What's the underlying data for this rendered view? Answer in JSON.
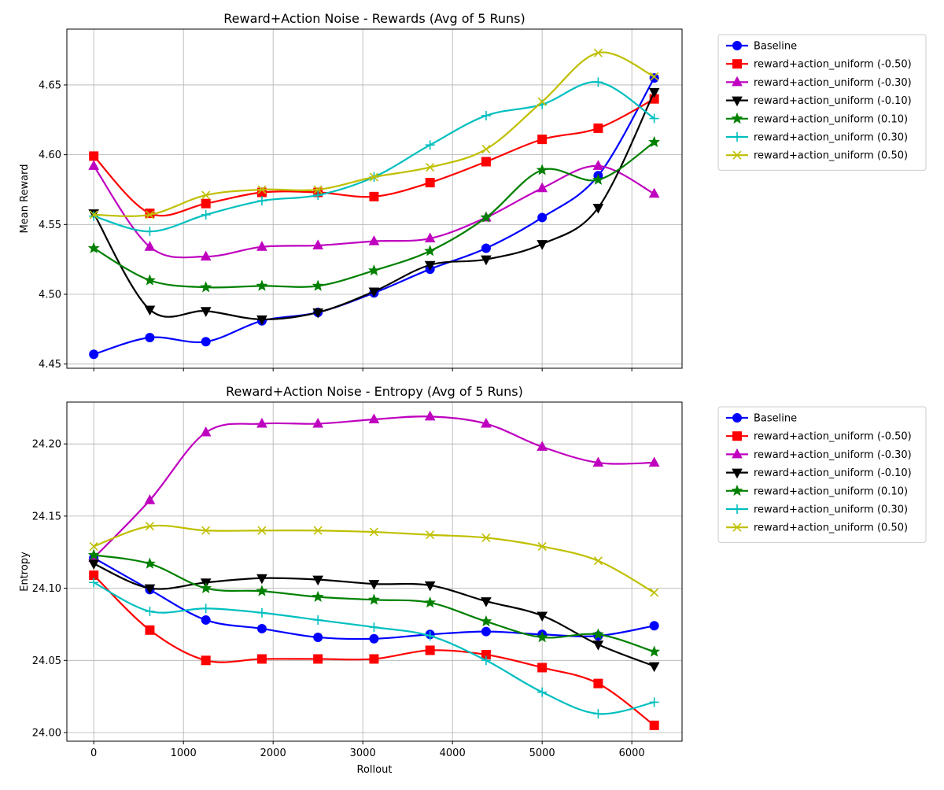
{
  "figure": {
    "series_styles": [
      {
        "color": "#0000ff",
        "marker": "circle"
      },
      {
        "color": "#ff0000",
        "marker": "square"
      },
      {
        "color": "#bf00bf",
        "marker": "triangle-up"
      },
      {
        "color": "#000000",
        "marker": "triangle-down"
      },
      {
        "color": "#008000",
        "marker": "star"
      },
      {
        "color": "#00bfbf",
        "marker": "plus"
      },
      {
        "color": "#bfbf00",
        "marker": "x"
      }
    ]
  },
  "chart_data": [
    {
      "type": "line",
      "title": "Reward+Action Noise - Rewards (Avg of 5 Runs)",
      "xlabel": "",
      "ylabel": "Mean Reward",
      "xlim": [
        -300,
        6560
      ],
      "ylim": [
        4.447,
        4.69
      ],
      "xticks": [
        0,
        1000,
        2000,
        3000,
        4000,
        5000,
        6000
      ],
      "xtick_labels_visible": false,
      "yticks": [
        4.45,
        4.5,
        4.55,
        4.6,
        4.65
      ],
      "ytick_labels": [
        "4.45",
        "4.50",
        "4.55",
        "4.60",
        "4.65"
      ],
      "grid": true,
      "legend_placement": "outside upper right",
      "x": [
        0,
        625,
        1250,
        1875,
        2500,
        3125,
        3750,
        4375,
        5000,
        5625,
        6250
      ],
      "series": [
        {
          "name": "Baseline",
          "values": [
            4.457,
            4.469,
            4.466,
            4.481,
            4.487,
            4.501,
            4.518,
            4.533,
            4.555,
            4.585,
            4.655
          ]
        },
        {
          "name": "reward+action_uniform (-0.50)",
          "values": [
            4.599,
            4.558,
            4.565,
            4.573,
            4.573,
            4.57,
            4.58,
            4.595,
            4.611,
            4.619,
            4.64
          ]
        },
        {
          "name": "reward+action_uniform (-0.30)",
          "values": [
            4.592,
            4.534,
            4.527,
            4.534,
            4.535,
            4.538,
            4.54,
            4.555,
            4.576,
            4.592,
            4.572
          ]
        },
        {
          "name": "reward+action_uniform (-0.10)",
          "values": [
            4.558,
            4.489,
            4.488,
            4.482,
            4.487,
            4.502,
            4.521,
            4.525,
            4.536,
            4.562,
            4.645
          ]
        },
        {
          "name": "reward+action_uniform (0.10)",
          "values": [
            4.533,
            4.51,
            4.505,
            4.506,
            4.506,
            4.517,
            4.531,
            4.555,
            4.589,
            4.582,
            4.609
          ]
        },
        {
          "name": "reward+action_uniform (0.30)",
          "values": [
            4.556,
            4.545,
            4.557,
            4.567,
            4.571,
            4.584,
            4.607,
            4.628,
            4.636,
            4.652,
            4.626
          ]
        },
        {
          "name": "reward+action_uniform (0.50)",
          "values": [
            4.557,
            4.557,
            4.571,
            4.575,
            4.575,
            4.584,
            4.591,
            4.604,
            4.638,
            4.673,
            4.656
          ]
        }
      ]
    },
    {
      "type": "line",
      "title": "Reward+Action Noise - Entropy (Avg of 5 Runs)",
      "xlabel": "Rollout",
      "ylabel": "Entropy",
      "xlim": [
        -300,
        6560
      ],
      "ylim": [
        23.994,
        24.229
      ],
      "xticks": [
        0,
        1000,
        2000,
        3000,
        4000,
        5000,
        6000
      ],
      "xtick_labels": [
        "0",
        "1000",
        "2000",
        "3000",
        "4000",
        "5000",
        "6000"
      ],
      "yticks": [
        24.0,
        24.05,
        24.1,
        24.15,
        24.2
      ],
      "ytick_labels": [
        "24.00",
        "24.05",
        "24.10",
        "24.15",
        "24.20"
      ],
      "grid": true,
      "legend_placement": "outside upper right",
      "x": [
        0,
        625,
        1250,
        1875,
        2500,
        3125,
        3750,
        4375,
        5000,
        5625,
        6250
      ],
      "series": [
        {
          "name": "Baseline",
          "values": [
            24.121,
            24.099,
            24.078,
            24.072,
            24.066,
            24.065,
            24.068,
            24.07,
            24.068,
            24.067,
            24.074
          ]
        },
        {
          "name": "reward+action_uniform (-0.50)",
          "values": [
            24.109,
            24.071,
            24.05,
            24.051,
            24.051,
            24.051,
            24.057,
            24.054,
            24.045,
            24.034,
            24.005
          ]
        },
        {
          "name": "reward+action_uniform (-0.30)",
          "values": [
            24.121,
            24.161,
            24.208,
            24.214,
            24.214,
            24.217,
            24.219,
            24.214,
            24.198,
            24.187,
            24.187
          ]
        },
        {
          "name": "reward+action_uniform (-0.10)",
          "values": [
            24.117,
            24.1,
            24.104,
            24.107,
            24.106,
            24.103,
            24.102,
            24.091,
            24.081,
            24.061,
            24.046
          ]
        },
        {
          "name": "reward+action_uniform (0.10)",
          "values": [
            24.123,
            24.117,
            24.1,
            24.098,
            24.094,
            24.092,
            24.09,
            24.077,
            24.066,
            24.068,
            24.056
          ]
        },
        {
          "name": "reward+action_uniform (0.30)",
          "values": [
            24.104,
            24.084,
            24.086,
            24.083,
            24.078,
            24.073,
            24.067,
            24.05,
            24.028,
            24.013,
            24.021
          ]
        },
        {
          "name": "reward+action_uniform (0.50)",
          "values": [
            24.129,
            24.143,
            24.14,
            24.14,
            24.14,
            24.139,
            24.137,
            24.135,
            24.129,
            24.119,
            24.097
          ]
        }
      ]
    }
  ]
}
